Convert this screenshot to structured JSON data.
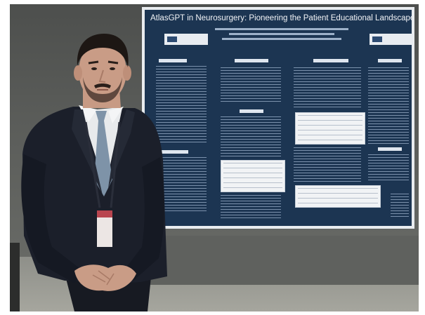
{
  "scene": {
    "description_role": "photograph",
    "poster": {
      "title": "AtlasGPT in Neurosurgery: Pioneering the Patient Educational Landscape"
    }
  },
  "colors": {
    "poster_background": "#1c3552",
    "suit": "#1b1f2a",
    "wall": "#5a5c59"
  }
}
